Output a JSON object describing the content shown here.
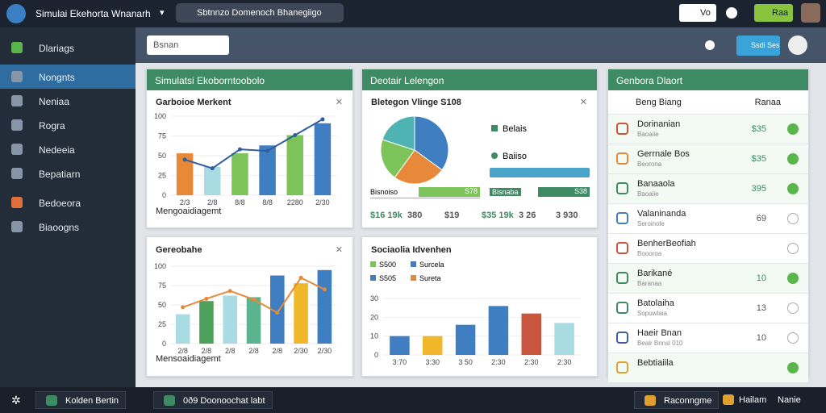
{
  "app": {
    "title": "Simulai Ekehorta Wnanarh",
    "workspace": "Sbtnnzo Domenoch Bhanegiigo",
    "toggle": "Vo",
    "action": "Raa"
  },
  "sidebar": {
    "header": "Dlariags",
    "items": [
      "Nongnts",
      "Neniaa",
      "Rogra",
      "Nedeeia",
      "Bepatiarn",
      "Bedoeora",
      "Biaoogns"
    ]
  },
  "toolbar": {
    "search": "Bsnan",
    "button": "Ssdi Ses"
  },
  "panels": {
    "p1": {
      "title": "Simulatsi Ekoborntoobolo",
      "chart_title": "Garboioe Merkent",
      "footer": "Mengoaidiagemt",
      "chart": {
        "type": "bar",
        "categories": [
          "2/3",
          "2/8",
          "8/8",
          "8/8",
          "2280",
          "2/30"
        ],
        "ylim": [
          0,
          100
        ],
        "yticks": [
          0,
          25,
          50,
          75,
          100
        ],
        "colors": [
          "#e8893a",
          "#a9dbe3",
          "#7cc35a",
          "#3f7fc1",
          "#7cc35a",
          "#3f7fc1"
        ],
        "values": [
          53,
          36,
          53,
          63,
          76,
          91
        ],
        "line": {
          "color": "#2f5d9e",
          "values": [
            45,
            34,
            58,
            56,
            76,
            96
          ]
        }
      }
    },
    "p2": {
      "title": "Deotair Lelengon",
      "chart_title": "Bletegon Vlinge S108",
      "pie": {
        "type": "pie",
        "values": [
          35,
          25,
          20,
          20
        ],
        "colors": [
          "#3f7fc1",
          "#e8893a",
          "#7cc35a",
          "#4fb3b3"
        ]
      },
      "legend": [
        "Belais",
        "Baiiso"
      ],
      "rows": [
        {
          "label": "Bisnoiso",
          "value": "S78"
        },
        {
          "label": "Bisnaba",
          "value": "S38"
        }
      ],
      "stats": [
        "$16 19k",
        "380",
        "$19",
        "$35 19k",
        "3 26",
        "3 930"
      ]
    },
    "p3": {
      "title": "Genbora Dlaort",
      "header": "Beng Biang",
      "header_right": "Ranaa",
      "items": [
        {
          "label": "Dorinanian",
          "sub": "Baoaiie",
          "value": "$35",
          "checked": true
        },
        {
          "label": "Gerrnale Bos",
          "sub": "Beorona",
          "value": "$35",
          "checked": true
        },
        {
          "label": "Banaaola",
          "sub": "Baoaiie",
          "value": "395",
          "checked": true
        },
        {
          "label": "Valaninanda",
          "sub": "Seroinole",
          "value": "69",
          "checked": false
        },
        {
          "label": "BenherBeofiah",
          "sub": "Boooroa",
          "value": "",
          "checked": false
        },
        {
          "label": "Barikané",
          "sub": "Baranaa",
          "value": "10",
          "checked": true
        },
        {
          "label": "Batolaiha",
          "sub": "Sopuwlaia",
          "value": "13",
          "checked": false
        },
        {
          "label": "Haeir Bnan",
          "sub": "Bealr Bnnsl 010",
          "value": "10",
          "checked": false
        },
        {
          "label": "Bebtiaiila",
          "sub": "",
          "value": "",
          "checked": true
        }
      ]
    },
    "p4": {
      "title": "Gereobahe",
      "footer": "Mensoaidiagemt",
      "chart": {
        "type": "bar",
        "categories": [
          "2/8",
          "2/8",
          "2/8",
          "2/8",
          "2/8",
          "2/30",
          "2/30"
        ],
        "ylim": [
          0,
          100
        ],
        "yticks": [
          0,
          25,
          50,
          75,
          100
        ],
        "colors": [
          "#a9dbe3",
          "#4fa05a",
          "#a9dbe3",
          "#5bb38f",
          "#3f7fc1",
          "#f0b72a",
          "#3f7fc1"
        ],
        "values": [
          38,
          55,
          62,
          60,
          88,
          78,
          95
        ],
        "line": {
          "color": "#e8893a",
          "values": [
            47,
            58,
            68,
            57,
            40,
            85,
            70
          ]
        }
      }
    },
    "p5": {
      "title": "Sociaolia Idvenhen",
      "legend": [
        "S500",
        "Surcela",
        "S505",
        "Sureta"
      ],
      "legend_colors": [
        "#7cc35a",
        "#3f7fc1",
        "#3f7fc1",
        "#e8893a"
      ],
      "chart": {
        "type": "bar",
        "categories": [
          "3:70",
          "3:30",
          "3 50",
          "2:30",
          "2:30",
          "2:30"
        ],
        "ylim": [
          0,
          30
        ],
        "yticks": [
          0,
          10,
          20,
          30
        ],
        "colors": [
          "#3f7fc1",
          "#f0b72a",
          "#3f7fc1",
          "#3f7fc1",
          "#c8553d",
          "#a9dbe3"
        ],
        "values": [
          10,
          10,
          16,
          26,
          22,
          17
        ]
      }
    }
  },
  "taskbar": {
    "items": [
      "Kolden Bertin",
      "0ð9 Doonoochat labt",
      "Raconngme",
      "Hailam",
      "Nanie"
    ]
  }
}
